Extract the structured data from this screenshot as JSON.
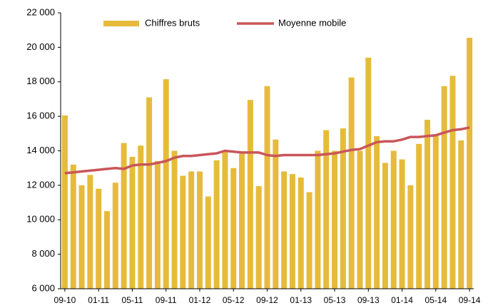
{
  "chart_data": {
    "type": "bar_line",
    "categories": [
      "09-10",
      null,
      null,
      null,
      "01-11",
      null,
      null,
      null,
      "05-11",
      null,
      null,
      null,
      "09-11",
      null,
      null,
      null,
      "01-12",
      null,
      null,
      null,
      "05-12",
      null,
      null,
      null,
      "09-12",
      null,
      null,
      null,
      "01-13",
      null,
      null,
      null,
      "05-13",
      null,
      null,
      null,
      "09-13",
      null,
      null,
      null,
      "01-14",
      null,
      null,
      null,
      "05-14",
      null,
      null,
      null,
      "09-14"
    ],
    "series": [
      {
        "name": "Chiffres bruts",
        "kind": "bar",
        "color": "#e6bb3c",
        "values": [
          16050,
          13200,
          12000,
          12600,
          11800,
          10500,
          12150,
          14450,
          13650,
          14300,
          17100,
          13400,
          18150,
          14000,
          12550,
          12800,
          12800,
          11350,
          13450,
          13950,
          13000,
          13850,
          16950,
          11950,
          17750,
          14650,
          12800,
          12650,
          12450,
          11600,
          14000,
          15200,
          14000,
          15300,
          18250,
          14000,
          19400,
          14850,
          13300,
          14000,
          13500,
          12000,
          14400,
          15800,
          14900,
          17750,
          18350,
          14600,
          20550
        ]
      },
      {
        "name": "Moyenne mobile",
        "kind": "line",
        "color": "#c9565a",
        "values": [
          12700,
          12750,
          12800,
          12850,
          12900,
          12950,
          13000,
          12950,
          13150,
          13200,
          13200,
          13300,
          13400,
          13600,
          13700,
          13700,
          13750,
          13800,
          13850,
          14000,
          13950,
          13900,
          13900,
          13900,
          13750,
          13700,
          13750,
          13750,
          13750,
          13750,
          13750,
          13800,
          13850,
          13950,
          14050,
          14100,
          14300,
          14500,
          14550,
          14550,
          14650,
          14800,
          14800,
          14850,
          14900,
          15050,
          15200,
          15250,
          15350
        ]
      }
    ],
    "ylim": [
      6000,
      22000
    ],
    "yticks": [
      {
        "value": 6000,
        "label": "6 000"
      },
      {
        "value": 8000,
        "label": "8 000"
      },
      {
        "value": 10000,
        "label": "10 000"
      },
      {
        "value": 12000,
        "label": "12 000"
      },
      {
        "value": 14000,
        "label": "14 000"
      },
      {
        "value": 16000,
        "label": "16 000"
      },
      {
        "value": 18000,
        "label": "18 000"
      },
      {
        "value": 20000,
        "label": "20 000"
      },
      {
        "value": 22000,
        "label": "22 000"
      }
    ],
    "legend": "top"
  }
}
